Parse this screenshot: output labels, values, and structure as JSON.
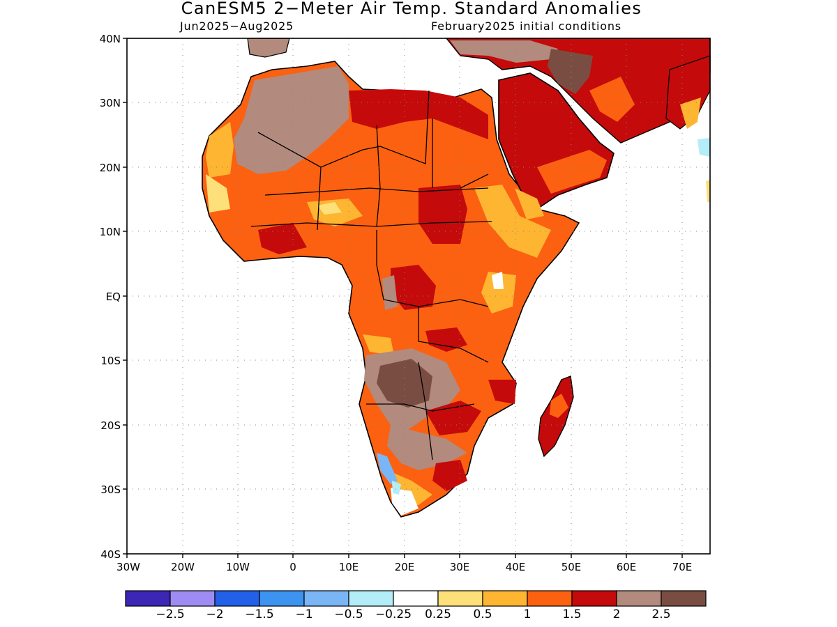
{
  "title": "CanESM5 2−Meter Air Temp. Standard Anomalies",
  "period": "Jun2025−Aug2025",
  "initial_conditions": "February2025 initial conditions",
  "lat_ticks": [
    "40N",
    "30N",
    "20N",
    "10N",
    "EQ",
    "10S",
    "20S",
    "30S",
    "40S"
  ],
  "lon_ticks": [
    "30W",
    "20W",
    "10W",
    "0",
    "10E",
    "20E",
    "30E",
    "40E",
    "50E",
    "60E",
    "70E"
  ],
  "colorbar": {
    "colors": [
      "#3b26b5",
      "#9f8cf3",
      "#2260e8",
      "#3d93f0",
      "#7ab5f5",
      "#b3edf7",
      "#ffffff",
      "#fde07a",
      "#fdb532",
      "#fb6110",
      "#c40a0a",
      "#b38a7e",
      "#7a4d43"
    ],
    "labels": [
      "−2.5",
      "−2",
      "−1.5",
      "−1",
      "−0.5",
      "−0.25",
      "0.25",
      "0.5",
      "1",
      "1.5",
      "2",
      "2.5"
    ]
  }
}
